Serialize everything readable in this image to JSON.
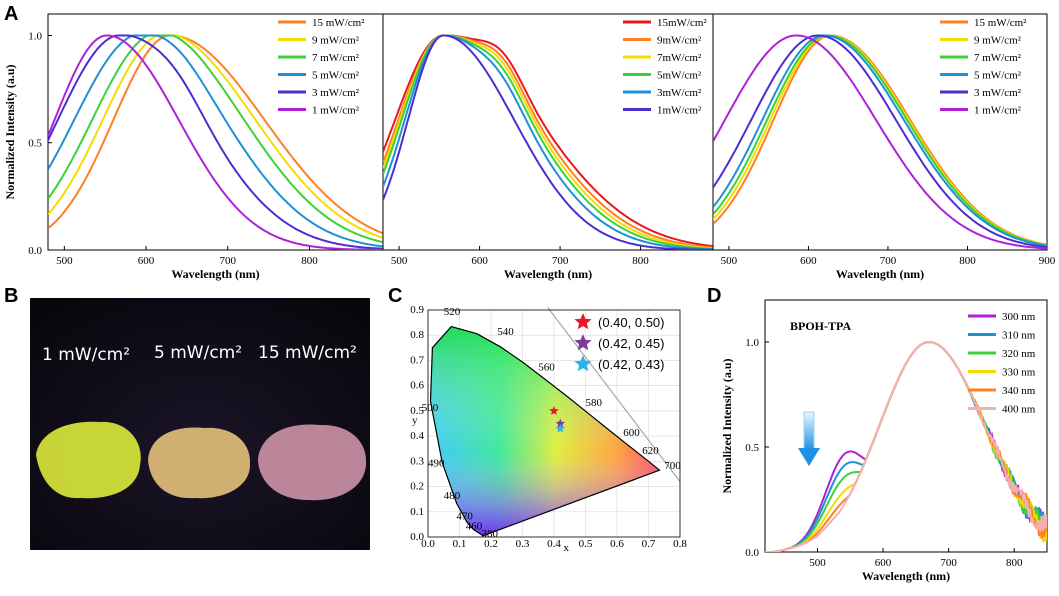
{
  "panel_labels": {
    "A": "A",
    "B": "B",
    "C": "C",
    "D": "D"
  },
  "photo": {
    "labels": [
      "1 mW/cm²",
      "5 mW/cm²",
      "15 mW/cm²"
    ],
    "sample_colors": [
      "#d8e63a",
      "#e6c07a",
      "#d99bb0"
    ]
  },
  "cie": {
    "xlabel": "x",
    "ylabel": "y",
    "x_ticks": [
      "0.0",
      "0.1",
      "0.2",
      "0.3",
      "0.4",
      "0.5",
      "0.6",
      "0.7",
      "0.8"
    ],
    "y_ticks": [
      "0.0",
      "0.1",
      "0.2",
      "0.3",
      "0.4",
      "0.5",
      "0.6",
      "0.7",
      "0.8",
      "0.9"
    ],
    "wavelength_marks": [
      "380",
      "460",
      "470",
      "480",
      "490",
      "500",
      "520",
      "540",
      "560",
      "580",
      "600",
      "620",
      "700"
    ],
    "points": [
      {
        "label": "(0.40, 0.50)",
        "x": 0.4,
        "y": 0.5,
        "color": "#e8172b"
      },
      {
        "label": "(0.42, 0.45)",
        "x": 0.42,
        "y": 0.45,
        "color": "#7c3a9e"
      },
      {
        "label": "(0.42, 0.43)",
        "x": 0.42,
        "y": 0.43,
        "color": "#29b4e8"
      }
    ]
  },
  "chart_data": [
    {
      "type": "line",
      "panel": "A-left",
      "xlabel": "Wavelength (nm)",
      "ylabel": "Normalized Intensity (a.u)",
      "xlim": [
        480,
        890
      ],
      "ylim": [
        0,
        1.1
      ],
      "x_ticks": [
        "500",
        "600",
        "700",
        "800"
      ],
      "y_ticks": [
        "0.0",
        "0.5",
        "1.0"
      ],
      "series": [
        {
          "name": "15 mW/cm²",
          "color": "#ff7f24",
          "peak": 630,
          "w1": 70,
          "w2": 115,
          "s": 0
        },
        {
          "name": "9 mW/cm²",
          "color": "#f5dc00",
          "peak": 622,
          "w1": 75,
          "w2": 112,
          "s": 0.08
        },
        {
          "name": "7 mW/cm²",
          "color": "#3bd13b",
          "peak": 612,
          "w1": 78,
          "w2": 108,
          "s": 0.16
        },
        {
          "name": "5 mW/cm²",
          "color": "#1e90d8",
          "peak": 592,
          "w1": 80,
          "w2": 104,
          "s": 0.26
        },
        {
          "name": "3 mW/cm²",
          "color": "#4a2fd0",
          "peak": 568,
          "w1": 76,
          "w2": 100,
          "s": 0.4
        },
        {
          "name": "1 mW/cm²",
          "color": "#b020d8",
          "peak": 552,
          "w1": 64,
          "w2": 88,
          "s": 0
        }
      ]
    },
    {
      "type": "line",
      "panel": "A-middle",
      "xlabel": "Wavelength (nm)",
      "ylabel": "",
      "xlim": [
        480,
        890
      ],
      "ylim": [
        0,
        1.1
      ],
      "x_ticks": [
        "500",
        "600",
        "700",
        "800"
      ],
      "y_ticks": [],
      "series": [
        {
          "name": "15mW/cm²",
          "color": "#e8181c",
          "peak": 555,
          "w1": 60,
          "w2": 118,
          "s": 0.55
        },
        {
          "name": "9mW/cm²",
          "color": "#ff7f24",
          "peak": 555,
          "w1": 56,
          "w2": 112,
          "s": 0.5
        },
        {
          "name": "7mW/cm²",
          "color": "#f5dc00",
          "peak": 555,
          "w1": 54,
          "w2": 108,
          "s": 0.45
        },
        {
          "name": "5mW/cm²",
          "color": "#3bd13b",
          "peak": 555,
          "w1": 52,
          "w2": 104,
          "s": 0.38
        },
        {
          "name": "3mW/cm²",
          "color": "#1e90d8",
          "peak": 555,
          "w1": 48,
          "w2": 98,
          "s": 0.3
        },
        {
          "name": "1mW/cm²",
          "color": "#4a2fd0",
          "peak": 555,
          "w1": 44,
          "w2": 88,
          "s": 0
        }
      ]
    },
    {
      "type": "line",
      "panel": "A-right",
      "xlabel": "Wavelength (nm)",
      "ylabel": "",
      "xlim": [
        480,
        900
      ],
      "ylim": [
        0,
        1.1
      ],
      "x_ticks": [
        "500",
        "600",
        "700",
        "800",
        "900"
      ],
      "y_ticks": [],
      "series": [
        {
          "name": "15 mW/cm²",
          "color": "#ff7f24",
          "peak": 628,
          "w1": 72,
          "w2": 100,
          "s": 0
        },
        {
          "name": "9 mW/cm²",
          "color": "#f5dc00",
          "peak": 626,
          "w1": 74,
          "w2": 100,
          "s": 0
        },
        {
          "name": "7 mW/cm²",
          "color": "#3bd13b",
          "peak": 624,
          "w1": 76,
          "w2": 100,
          "s": 0
        },
        {
          "name": "5 mW/cm²",
          "color": "#1e90d8",
          "peak": 620,
          "w1": 78,
          "w2": 100,
          "s": 0
        },
        {
          "name": "3 mW/cm²",
          "color": "#4a2fd0",
          "peak": 612,
          "w1": 84,
          "w2": 98,
          "s": 0
        },
        {
          "name": "1 mW/cm²",
          "color": "#b020d8",
          "peak": 585,
          "w1": 90,
          "w2": 100,
          "s": 0
        }
      ]
    },
    {
      "type": "line",
      "panel": "D",
      "title": "BPOH-TPA",
      "xlabel": "Wavelength (nm)",
      "ylabel": "Normalized Intensity (a.u)",
      "xlim": [
        420,
        850
      ],
      "ylim": [
        0,
        1.2
      ],
      "x_ticks": [
        "500",
        "600",
        "700",
        "800"
      ],
      "y_ticks": [
        "0.0",
        "0.5",
        "1.0"
      ],
      "series": [
        {
          "name": "300 nm",
          "color": "#b020d8",
          "sh": 0.3
        },
        {
          "name": "310 nm",
          "color": "#1e90d8",
          "sh": 0.25
        },
        {
          "name": "320 nm",
          "color": "#3bd13b",
          "sh": 0.2
        },
        {
          "name": "330 nm",
          "color": "#f5dc00",
          "sh": 0.14
        },
        {
          "name": "340 nm",
          "color": "#ff7f24",
          "sh": 0.1
        },
        {
          "name": "400 nm",
          "color": "#f4b0b0",
          "sh": 0.07
        }
      ]
    }
  ]
}
